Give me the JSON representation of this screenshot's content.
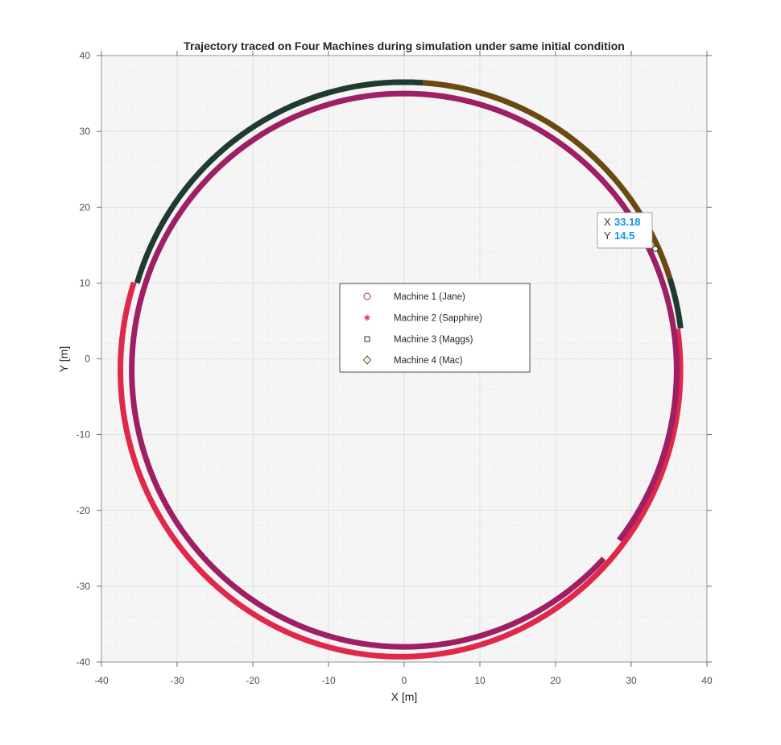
{
  "chart_data": {
    "type": "scatter",
    "title": "Trajectory traced on Four Machines during simulation under same initial condition",
    "xlabel": "X [m]",
    "ylabel": "Y [m]",
    "xlim": [
      -40,
      40
    ],
    "ylim": [
      -40,
      40
    ],
    "xticks": [
      -40,
      -30,
      -20,
      -10,
      0,
      10,
      20,
      30,
      40
    ],
    "yticks": [
      -40,
      -30,
      -20,
      -10,
      0,
      10,
      20,
      30,
      40
    ],
    "grid": true,
    "minor_grid": true,
    "legend_position": "center",
    "series": [
      {
        "name": "Machine 1 (Jane)",
        "marker": "circle",
        "color": "#9e1f63",
        "shape": "arc",
        "center": [
          0,
          -1.5
        ],
        "radius_x": 36.0,
        "radius_y": 36.5,
        "start_point": [
          28.5,
          -24.0
        ],
        "direction": "counterclockwise",
        "sweep_deg": 355,
        "description_points": [
          [
            28.5,
            -24.0
          ],
          [
            36.0,
            -1.5
          ],
          [
            0,
            35.0
          ],
          [
            -36.0,
            -1.5
          ],
          [
            0,
            -38.0
          ]
        ]
      },
      {
        "name": "Machine 2 (Sapphire)",
        "marker": "asterisk",
        "color": "#e0284a",
        "shape": "arc",
        "center": [
          -0.5,
          -1.5
        ],
        "radius_x": 37.0,
        "radius_y": 37.8,
        "segments_deg": [
          [
            0,
            0
          ],
          [
            0,
            0
          ]
        ],
        "points": [
          [
            36.5,
            4.0
          ],
          [
            36.5,
            -1.5
          ],
          [
            0,
            -39.3
          ],
          [
            -37.5,
            -1.5
          ],
          [
            -37.0,
            10.5
          ]
        ]
      },
      {
        "name": "Machine 3 (Maggs)",
        "marker": "square",
        "color": "#1f3a2e",
        "shape": "arc",
        "center": [
          0,
          -0.5
        ],
        "radius_x": 36.8,
        "radius_y": 37.0,
        "points": [
          [
            -37.0,
            10.5
          ],
          [
            0,
            36.5
          ],
          [
            2.5,
            36.5
          ],
          [
            34.8,
            10.5
          ],
          [
            36.3,
            4.0
          ]
        ]
      },
      {
        "name": "Machine 4 (Mac)",
        "marker": "diamond",
        "color": "#6b4a12",
        "shape": "arc",
        "center": [
          0,
          -0.5
        ],
        "radius_x": 36.8,
        "radius_y": 37.0,
        "points": [
          [
            2.5,
            36.5
          ],
          [
            20.0,
            30.0
          ],
          [
            30.5,
            20.0
          ],
          [
            34.8,
            10.5
          ]
        ]
      }
    ],
    "datatip": {
      "x_key": "X",
      "y_key": "Y",
      "x": 33.18,
      "y": 14.5,
      "x_text": "33.18",
      "y_text": "14.5"
    }
  }
}
